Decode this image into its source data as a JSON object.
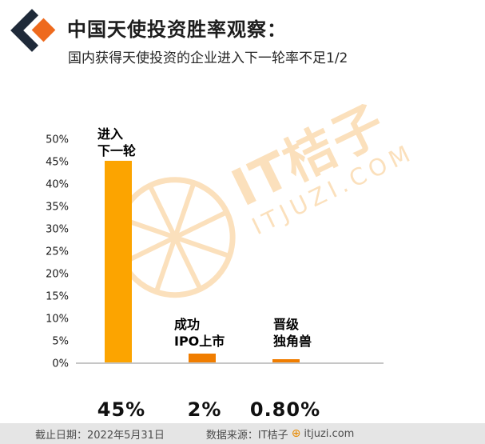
{
  "header": {
    "title": "中国天使投资胜率观察：",
    "subtitle": "国内获得天使投资的企业进入下一轮率不足1/2"
  },
  "chart_data": {
    "type": "bar",
    "title": "中国天使投资胜率观察",
    "categories": [
      "进入下一轮",
      "成功IPO上市",
      "晋级独角兽"
    ],
    "category_lines": [
      [
        "进入",
        "下一轮"
      ],
      [
        "成功",
        "IPO上市"
      ],
      [
        "晋级",
        "独角兽"
      ]
    ],
    "values": [
      45,
      2,
      0.8
    ],
    "value_labels": [
      "45%",
      "2%",
      "0.80%"
    ],
    "xlabel": "",
    "ylabel": "",
    "ylim": [
      0,
      50
    ],
    "ytick_step": 5,
    "yticks": [
      "50%",
      "45%",
      "40%",
      "35%",
      "30%",
      "25%",
      "20%",
      "15%",
      "10%",
      "5%",
      "0%"
    ],
    "grid": false,
    "legend": "none",
    "colors": [
      "#FCA400",
      "#F07D00",
      "#F07D00"
    ]
  },
  "watermark": {
    "line1": "IT桔子",
    "line2": "ITJUZI.COM",
    "color": "#F08C00"
  },
  "footer": {
    "date_label": "截止日期：2022年5月31日",
    "source_prefix": "数据来源：IT桔子",
    "source_icon": "⊕",
    "source_site": "itjuzi.com"
  }
}
